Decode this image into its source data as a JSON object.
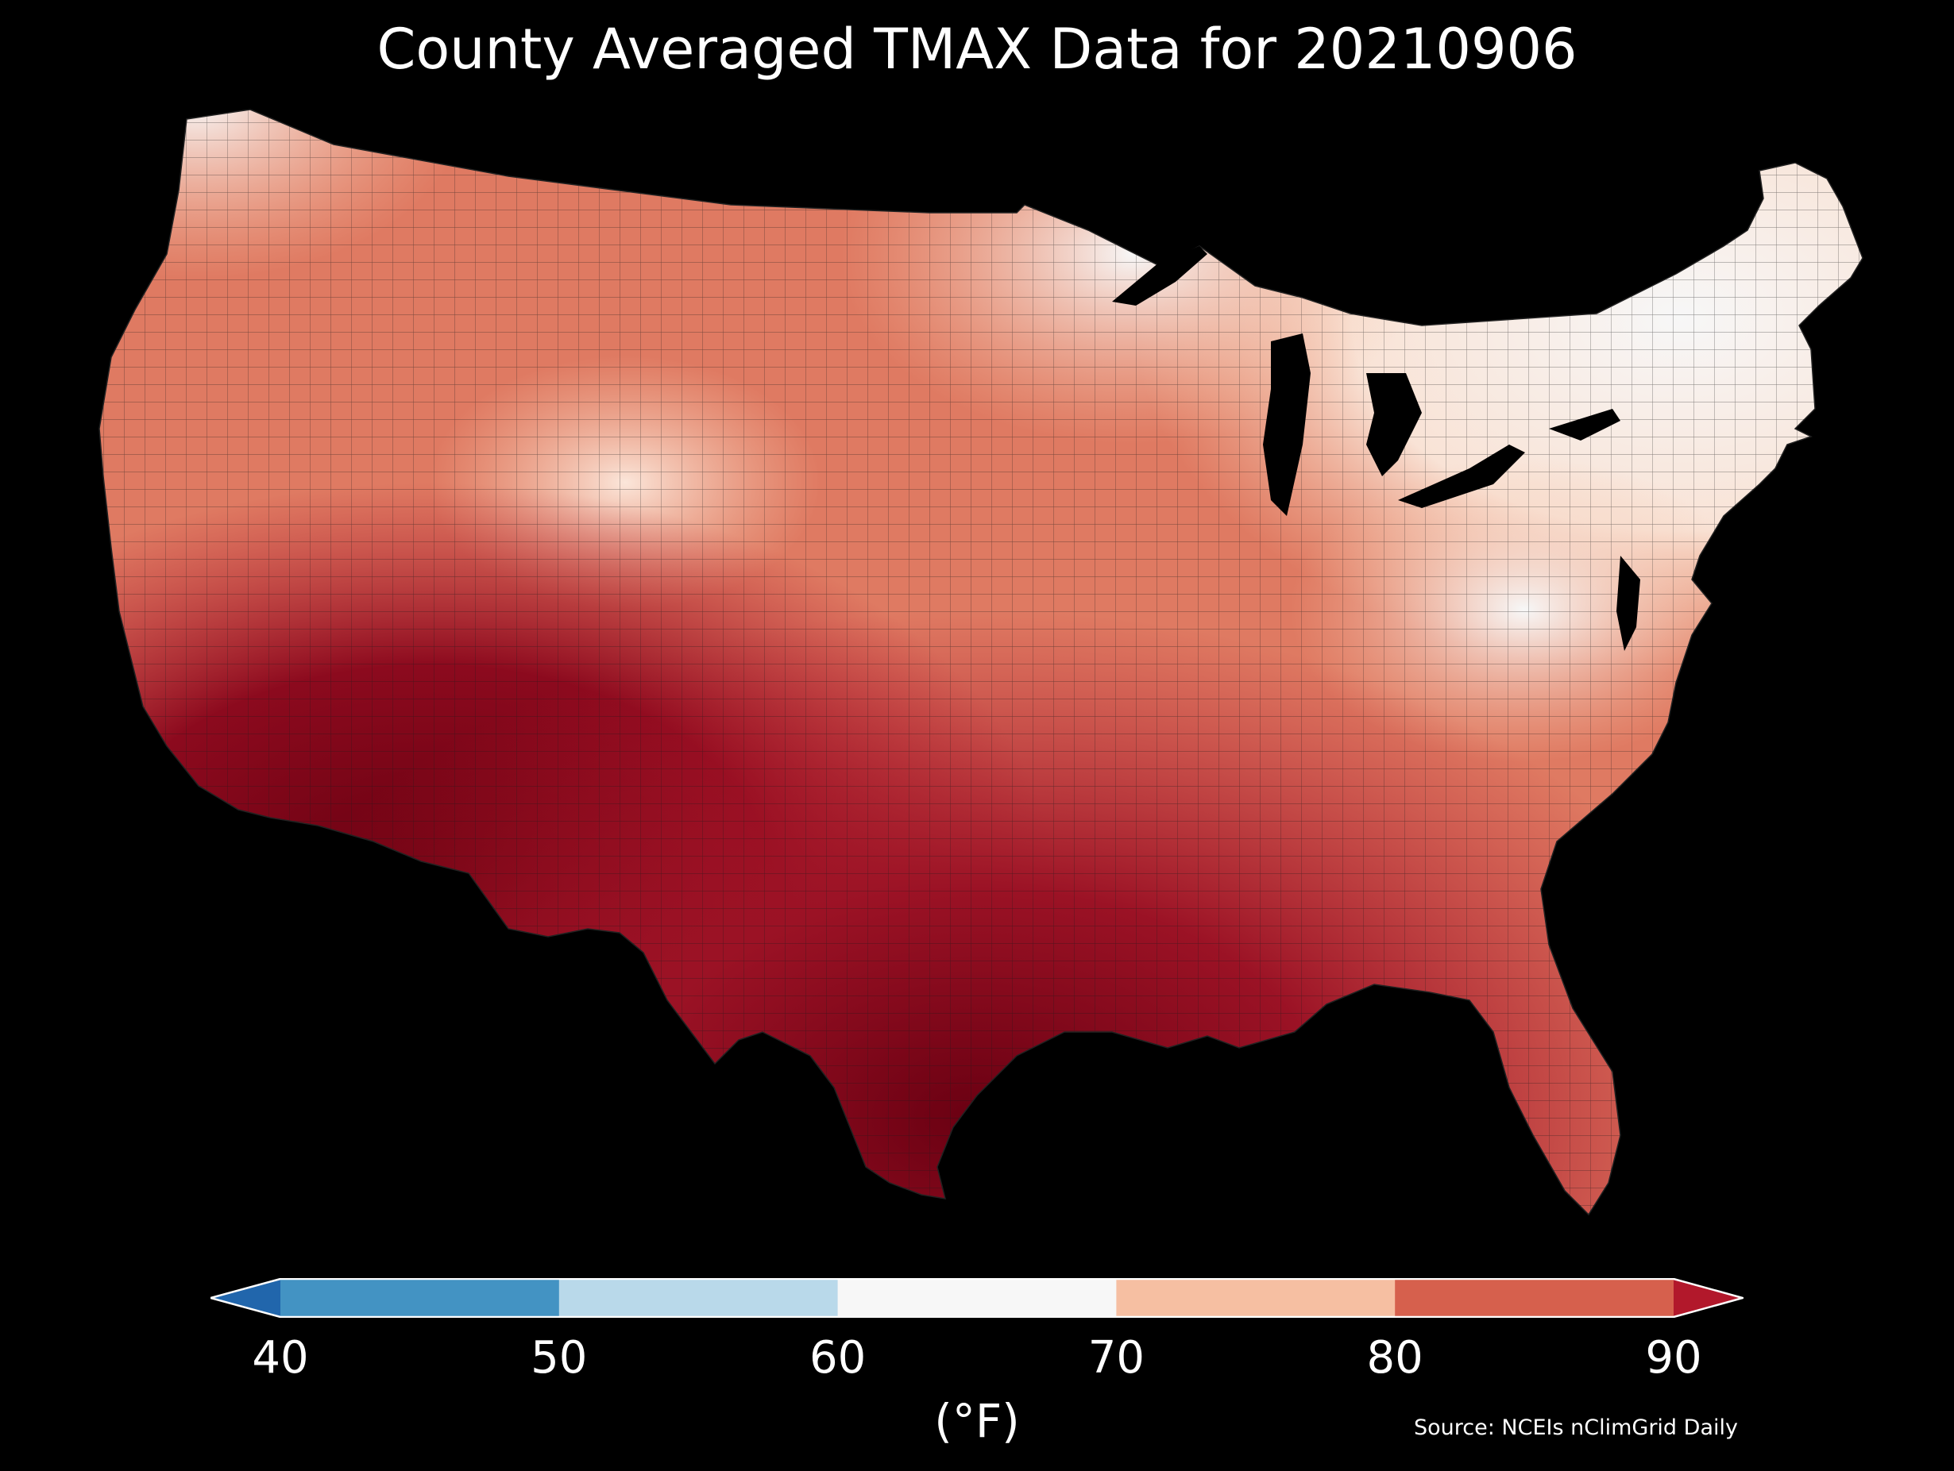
{
  "title": "County Averaged TMAX Data for 20210906",
  "colorbar": {
    "ticks": [
      "40",
      "50",
      "60",
      "70",
      "80",
      "90"
    ],
    "unit_label": "(°F)",
    "bins": [
      {
        "range": "<40",
        "color": "#2166ac"
      },
      {
        "range": "40-50",
        "color": "#4393c3"
      },
      {
        "range": "50-60",
        "color": "#b9d9ea"
      },
      {
        "range": "60-70",
        "color": "#f7f7f7"
      },
      {
        "range": "70-80",
        "color": "#f6bfa2"
      },
      {
        "range": "80-90",
        "color": "#d6604d"
      },
      {
        "range": ">90",
        "color": "#b2182b"
      }
    ]
  },
  "source": "Source: NCEIs nClimGrid Daily",
  "map": {
    "region": "Contiguous United States",
    "variable": "TMAX",
    "aggregation": "county average",
    "background": "#000000",
    "county_border_color": "#1a1a1a"
  }
}
